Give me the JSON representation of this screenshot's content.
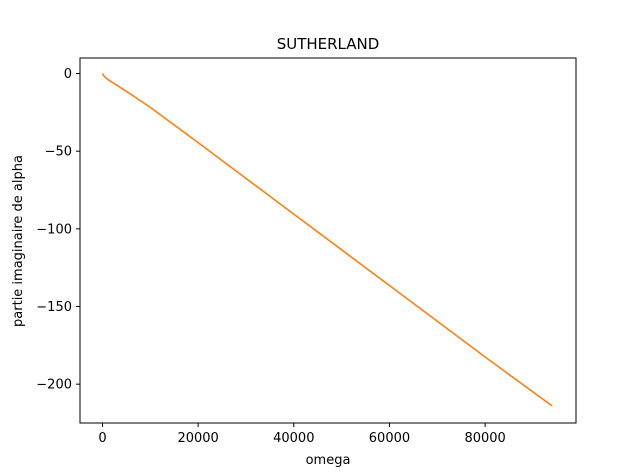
{
  "chart_data": {
    "type": "line",
    "title": "SUTHERLAND",
    "xlabel": "omega",
    "ylabel": "partie imaginaire de alpha",
    "xlim": [
      -4700,
      99000
    ],
    "ylim": [
      -225,
      10
    ],
    "x_ticks": [
      0,
      20000,
      40000,
      60000,
      80000
    ],
    "x_tick_labels": [
      "0",
      "20000",
      "40000",
      "60000",
      "80000"
    ],
    "y_ticks": [
      0,
      -50,
      -100,
      -150,
      -200
    ],
    "y_tick_labels": [
      "0",
      "−50",
      "−100",
      "−150",
      "−200"
    ],
    "grid": false,
    "series": [
      {
        "color": "#ff7f0e",
        "x": [
          0,
          300,
          700,
          1500,
          3000,
          6000,
          10000,
          20000,
          30000,
          40000,
          50000,
          60000,
          70000,
          80000,
          94000
        ],
        "y": [
          0,
          -1.5,
          -2.8,
          -4.6,
          -7.5,
          -13.5,
          -21.8,
          -44.5,
          -67.5,
          -90.5,
          -113.5,
          -136.5,
          -159.5,
          -182.5,
          -214
        ]
      }
    ]
  }
}
